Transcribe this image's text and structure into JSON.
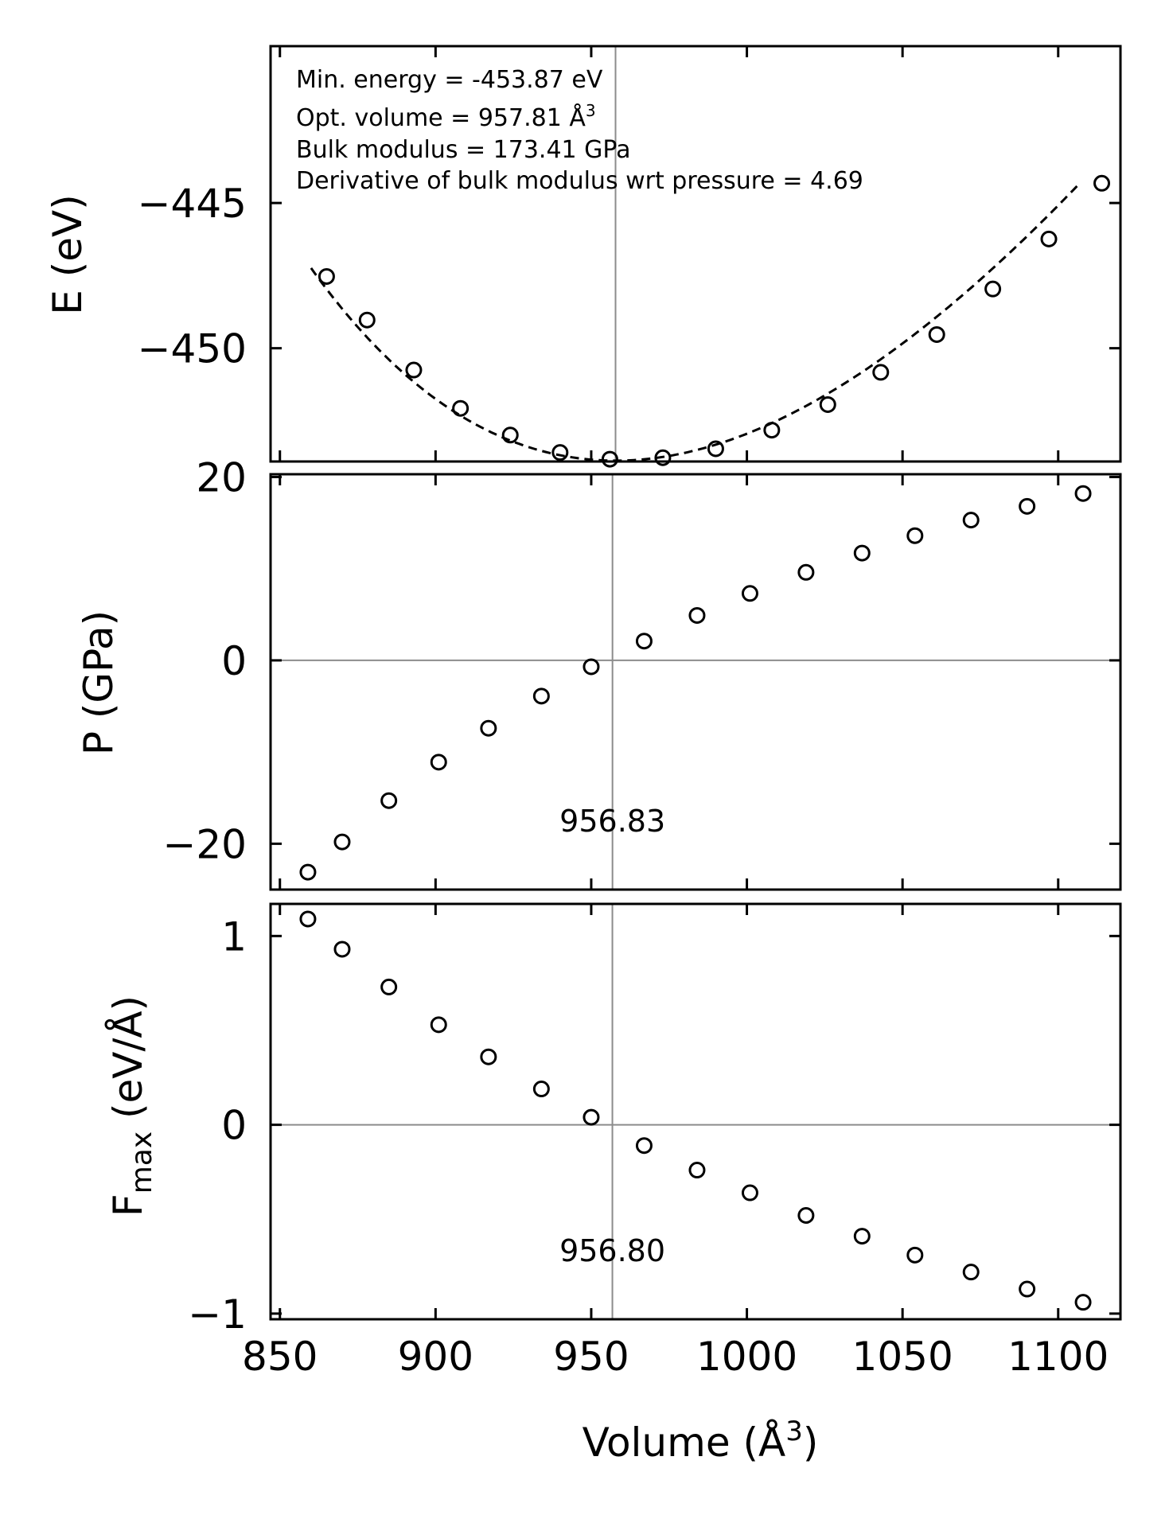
{
  "chart_data": [
    {
      "type": "scatter",
      "panel": "energy",
      "ylabel": "E (eV)",
      "ylim": [
        -453.9,
        -439.6
      ],
      "yticks": [
        -450,
        -445
      ],
      "ytick_labels": [
        "−450",
        "−445"
      ],
      "xlim": [
        847,
        1120
      ],
      "annotations": [
        "Min. energy = -453.87 eV",
        "Opt. volume = 957.81 Å",
        "Bulk modulus = 173.41 GPa",
        "Derivative of bulk modulus wrt pressure = 4.69"
      ],
      "annotation_sup": "3",
      "vline": 957.81,
      "fit": {
        "E0": -453.87,
        "V0": 957.81,
        "B0": 173.41,
        "Bp": 4.69,
        "style": "dashed",
        "vmin": 860,
        "vmax": 1107
      },
      "series": [
        {
          "name": "E",
          "x": [
            865,
            878,
            893,
            908,
            924,
            940,
            956,
            973,
            990,
            1008,
            1026,
            1043,
            1061,
            1079,
            1097,
            1114
          ],
          "y": [
            -447.53,
            -449.03,
            -450.75,
            -452.07,
            -452.99,
            -453.59,
            -453.82,
            -453.77,
            -453.46,
            -452.82,
            -451.94,
            -450.83,
            -449.53,
            -447.96,
            -446.24,
            -444.32
          ]
        }
      ]
    },
    {
      "type": "scatter",
      "panel": "pressure",
      "ylabel": "P (GPa)",
      "ylim": [
        -25.0,
        20.3
      ],
      "yticks": [
        -20,
        0,
        20
      ],
      "ytick_labels": [
        "−20",
        "0",
        "20"
      ],
      "xlim": [
        847,
        1120
      ],
      "hline": 0,
      "vline": 956.83,
      "vline_label": "956.83",
      "series": [
        {
          "name": "P",
          "x": [
            859,
            870,
            885,
            901,
            917,
            934,
            950,
            967,
            984,
            1001,
            1019,
            1037,
            1054,
            1072,
            1090,
            1108
          ],
          "y": [
            -23.1,
            -19.8,
            -15.3,
            -11.1,
            -7.4,
            -3.9,
            -0.7,
            2.1,
            4.9,
            7.3,
            9.6,
            11.7,
            13.6,
            15.3,
            16.8,
            18.2
          ]
        }
      ]
    },
    {
      "type": "scatter",
      "panel": "force",
      "ylabel": "F",
      "ylabel_sub": "max",
      "ylabel_rest": " (eV/Å)",
      "ylim": [
        -1.03,
        1.17
      ],
      "yticks": [
        -1,
        0,
        1
      ],
      "ytick_labels": [
        "−1",
        "0",
        "1"
      ],
      "xlim": [
        847,
        1120
      ],
      "hline": 0,
      "vline": 956.8,
      "vline_label": "956.80",
      "series": [
        {
          "name": "Fmax",
          "x": [
            859,
            870,
            885,
            901,
            917,
            934,
            950,
            967,
            984,
            1001,
            1019,
            1037,
            1054,
            1072,
            1090,
            1108
          ],
          "y": [
            1.09,
            0.93,
            0.73,
            0.53,
            0.36,
            0.19,
            0.04,
            -0.11,
            -0.24,
            -0.36,
            -0.48,
            -0.59,
            -0.69,
            -0.78,
            -0.87,
            -0.94
          ]
        }
      ]
    }
  ],
  "x_axis": {
    "label": "Volume (Å",
    "label_sup": "3",
    "label_close": ")",
    "ticks": [
      850,
      900,
      950,
      1000,
      1050,
      1100
    ],
    "tick_labels": [
      "850",
      "900",
      "950",
      "1000",
      "1050",
      "1100"
    ]
  }
}
